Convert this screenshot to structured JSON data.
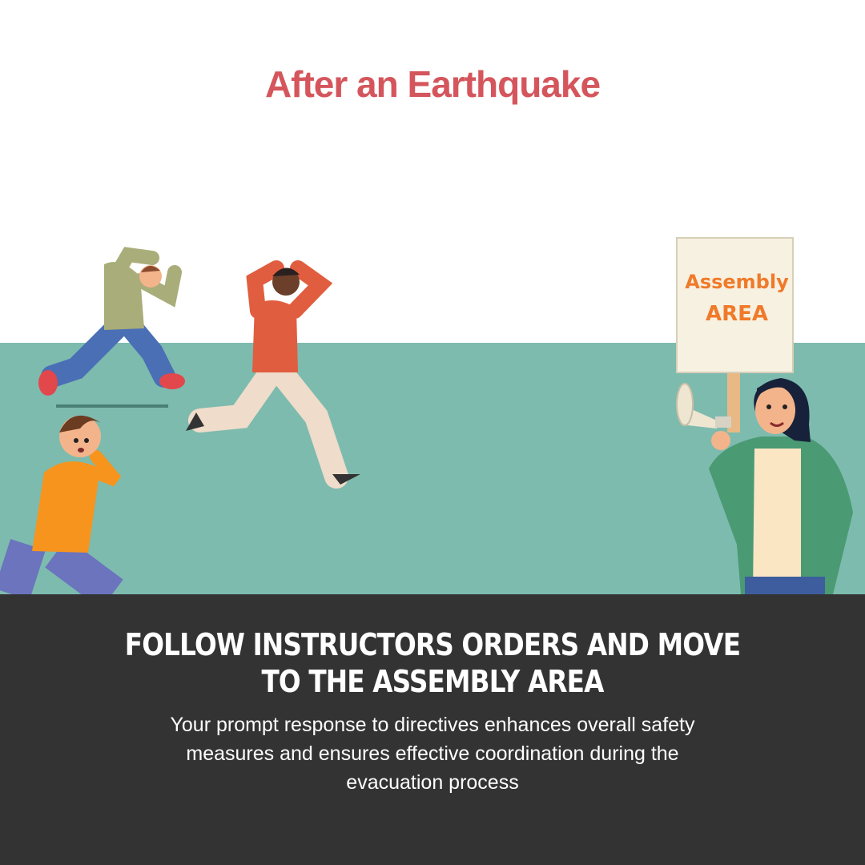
{
  "title": "After an Earthquake",
  "sign": {
    "line1": "Assembly",
    "line2": "AREA"
  },
  "instruction": {
    "heading": "FOLLOW INSTRUCTORS ORDERS AND MOVE TO THE ASSEMBLY AREA",
    "body": "Your prompt response to directives enhances overall safety measures and ensures effective coordination during the evacuation process"
  },
  "colors": {
    "title": "#d4565c",
    "ground": "#7dbbae",
    "panel": "#333333",
    "sign_text": "#f07a2a"
  }
}
